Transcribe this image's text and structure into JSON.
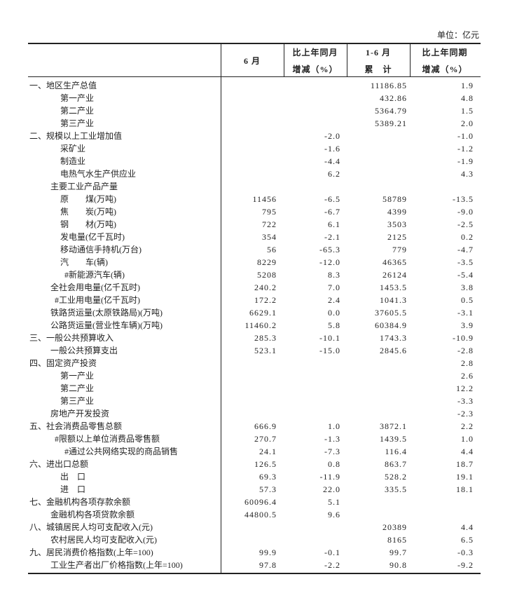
{
  "unit": "单位：亿元",
  "header": {
    "col1": "6 月",
    "col2": [
      "比上年同月",
      "增减（%）"
    ],
    "col3": [
      "1-6 月",
      "累　计"
    ],
    "col4": [
      "比上年同期",
      "增减（%）"
    ]
  },
  "table": {
    "rows": [
      [
        "一、地区生产总值",
        null,
        null,
        "11186.85",
        "1.9"
      ],
      [
        "第一产业",
        null,
        null,
        "432.86",
        "4.8"
      ],
      [
        "第二产业",
        null,
        null,
        "5364.79",
        "1.5"
      ],
      [
        "第三产业",
        null,
        null,
        "5389.21",
        "2.0"
      ],
      [
        "二、规模以上工业增加值",
        null,
        "-2.0",
        null,
        "-1.0"
      ],
      [
        "采矿业",
        null,
        "-1.6",
        null,
        "-1.2"
      ],
      [
        "制造业",
        null,
        "-4.4",
        null,
        "-1.9"
      ],
      [
        "电热气水生产供应业",
        null,
        "6.2",
        null,
        "4.3"
      ],
      [
        "主要工业产品产量",
        null,
        null,
        null,
        null
      ],
      [
        "原　　煤(万吨)",
        "11456",
        "-6.5",
        "58789",
        "-13.5"
      ],
      [
        "焦　　炭(万吨)",
        "795",
        "-6.7",
        "4399",
        "-9.0"
      ],
      [
        "钢　　材(万吨)",
        "722",
        "6.1",
        "3503",
        "-2.5"
      ],
      [
        "发电量(亿千瓦时)",
        "354",
        "-2.1",
        "2125",
        "0.2"
      ],
      [
        "移动通信手持机(万台)",
        "56",
        "-65.3",
        "779",
        "-4.7"
      ],
      [
        "汽　　车(辆)",
        "8229",
        "-12.0",
        "46365",
        "-3.5"
      ],
      [
        "#新能源汽车(辆)",
        "5208",
        "8.3",
        "26124",
        "-5.4"
      ],
      [
        "全社会用电量(亿千瓦时)",
        "240.2",
        "7.0",
        "1453.5",
        "3.8"
      ],
      [
        "#工业用电量(亿千瓦时)",
        "172.2",
        "2.4",
        "1041.3",
        "0.5"
      ],
      [
        "铁路货运量(太原铁路局)(万吨)",
        "6629.1",
        "0.0",
        "37605.5",
        "-3.1"
      ],
      [
        "公路货运量(营业性车辆)(万吨)",
        "11460.2",
        "5.8",
        "60384.9",
        "3.9"
      ],
      [
        "三、一般公共预算收入",
        "285.3",
        "-10.1",
        "1743.3",
        "-10.9"
      ],
      [
        "一般公共预算支出",
        "523.1",
        "-15.0",
        "2845.6",
        "-2.8"
      ],
      [
        "四、固定资产投资",
        null,
        null,
        null,
        "2.8"
      ],
      [
        "第一产业",
        null,
        null,
        null,
        "2.6"
      ],
      [
        "第二产业",
        null,
        null,
        null,
        "12.2"
      ],
      [
        "第三产业",
        null,
        null,
        null,
        "-3.3"
      ],
      [
        "房地产开发投资",
        null,
        null,
        null,
        "-2.3"
      ],
      [
        "五、社会消费品零售总额",
        "666.9",
        "1.0",
        "3872.1",
        "2.2"
      ],
      [
        "#限额以上单位消费品零售额",
        "270.7",
        "-1.3",
        "1439.5",
        "1.0"
      ],
      [
        "#通过公共网络实现的商品销售",
        "24.1",
        "-7.3",
        "116.4",
        "4.4"
      ],
      [
        "六、进出口总额",
        "126.5",
        "0.8",
        "863.7",
        "18.7"
      ],
      [
        "出　口",
        "69.3",
        "-11.9",
        "528.2",
        "19.1"
      ],
      [
        "进　口",
        "57.3",
        "22.0",
        "335.5",
        "18.1"
      ],
      [
        "七、金融机构各项存款余额",
        "60096.4",
        "5.1",
        null,
        null
      ],
      [
        "金融机构各项贷款余额",
        "44800.5",
        "9.6",
        null,
        null
      ],
      [
        "八、城镇居民人均可支配收入(元)",
        null,
        null,
        "20389",
        "4.4"
      ],
      [
        "农村居民人均可支配收入(元)",
        null,
        null,
        "8165",
        "6.5"
      ],
      [
        "九、居民消费价格指数(上年=100)",
        "99.9",
        "-0.1",
        "99.7",
        "-0.3"
      ],
      [
        "工业生产者出厂价格指数(上年=100)",
        "97.8",
        "-2.2",
        "90.8",
        "-9.2"
      ]
    ]
  }
}
